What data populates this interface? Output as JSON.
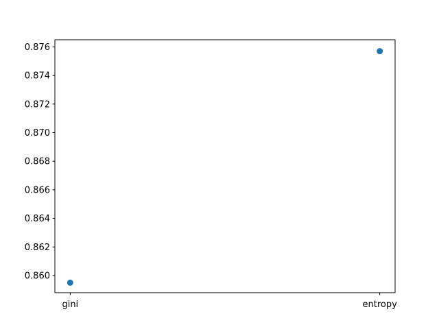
{
  "chart_data": {
    "type": "scatter",
    "title": "",
    "xlabel": "",
    "ylabel": "",
    "categories": [
      "gini",
      "entropy"
    ],
    "values": [
      0.8595,
      0.8757
    ],
    "ylim": [
      0.8588,
      0.8765
    ],
    "yticks": [
      0.86,
      0.862,
      0.864,
      0.866,
      0.868,
      0.87,
      0.872,
      0.874,
      0.876
    ],
    "ytick_labels": [
      "0.860",
      "0.862",
      "0.864",
      "0.866",
      "0.868",
      "0.870",
      "0.872",
      "0.874",
      "0.876"
    ],
    "grid": false,
    "marker_color": "#1f77b4"
  }
}
